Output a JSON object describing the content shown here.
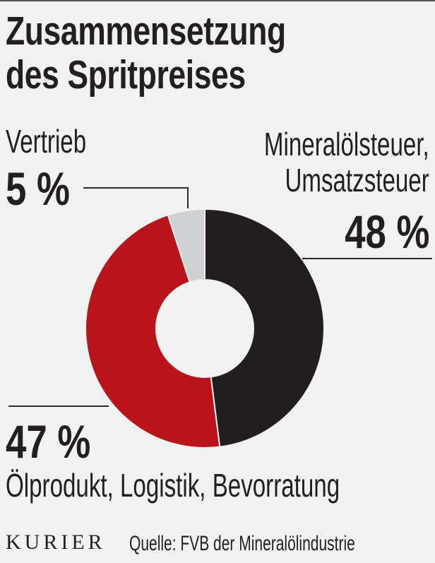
{
  "title": {
    "line1": "Zusammensetzung",
    "line2": "des Spritpreises"
  },
  "labels": {
    "vertrieb": {
      "name": "Vertrieb",
      "percent": "5 %"
    },
    "mineral": {
      "name_line1": "Mineralölsteuer,",
      "name_line2": "Umsatzsteuer",
      "percent": "48 %"
    },
    "oel": {
      "name": "Ölprodukt, Logistik, Bevorratung",
      "percent": "47 %"
    }
  },
  "footer": {
    "logo": "KURIER",
    "source": "Quelle: FVB der Mineralölindustrie"
  },
  "colors": {
    "background": "#f1f1f1",
    "mineral": "#221e1f",
    "oel": "#b81419",
    "vertrieb": "#cfd0d1",
    "text": "#231f20"
  },
  "chart_data": {
    "type": "pie",
    "variant": "donut",
    "title": "Zusammensetzung des Spritpreises",
    "categories": [
      "Mineralölsteuer, Umsatzsteuer",
      "Ölprodukt, Logistik, Bevorratung",
      "Vertrieb"
    ],
    "values": [
      48,
      47,
      5
    ],
    "unit": "%",
    "colors": [
      "#221e1f",
      "#b81419",
      "#cfd0d1"
    ],
    "start_angle": "12 o'clock, clockwise",
    "source": "Quelle: FVB der Mineralölindustrie",
    "legend": "direct labels with leader lines"
  }
}
